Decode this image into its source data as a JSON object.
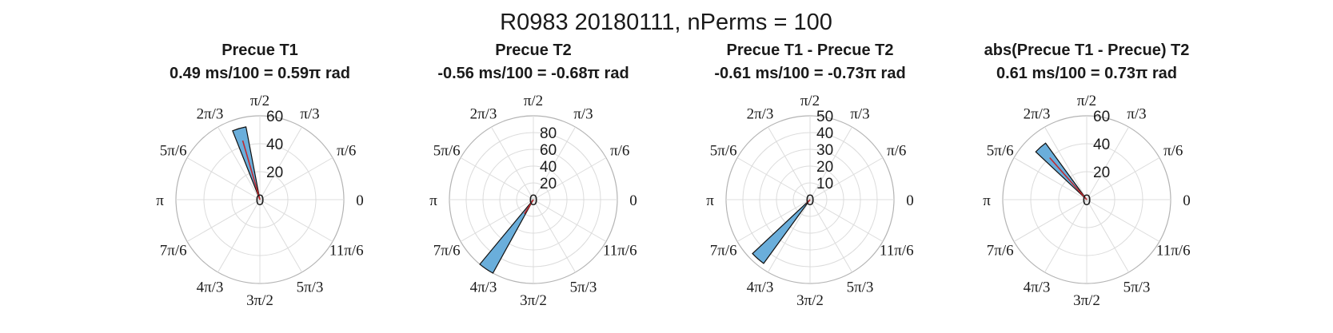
{
  "figure": {
    "suptitle": "R0983 20180111, nPerms = 100"
  },
  "theta_tick_labels": [
    "0",
    "π/6",
    "π/3",
    "π/2",
    "2π/3",
    "5π/6",
    "π",
    "7π/6",
    "4π/3",
    "3π/2",
    "5π/3",
    "11π/6"
  ],
  "colors": {
    "bar_fill": "#6aaedb",
    "bar_edge": "#111111",
    "mean_vector": "#c0282d",
    "grid": "#dcdcdc",
    "outer_circle": "#b4b4b4",
    "text": "#1a1a1a"
  },
  "chart_data": [
    {
      "type": "polar_histogram",
      "title": "Precue T1",
      "subtitle": "0.49 ms/100 = 0.59π rad",
      "rlim": [
        0,
        60
      ],
      "rticks": [
        20,
        40,
        60
      ],
      "r_tick_labels": [
        "20",
        "40",
        "60"
      ],
      "origin_label": "0",
      "bars": [
        {
          "theta_start_pi": 0.56,
          "theta_end_pi": 0.62,
          "count": 53
        }
      ],
      "mean_vector": {
        "theta_pi": 0.59,
        "length": 44
      }
    },
    {
      "type": "polar_histogram",
      "title": "Precue T2",
      "subtitle": "-0.56 ms/100 = -0.68π rad",
      "rlim": [
        0,
        100
      ],
      "rticks": [
        20,
        40,
        60,
        80
      ],
      "r_tick_labels": [
        "20",
        "40",
        "60",
        "80"
      ],
      "origin_label": "0",
      "bars": [
        {
          "theta_start_pi": 1.28,
          "theta_end_pi": 1.34,
          "count": 100
        }
      ],
      "mean_vector": {
        "theta_pi": 1.32,
        "length": 20
      }
    },
    {
      "type": "polar_histogram",
      "title": "Precue T1 - Precue T2",
      "subtitle": "-0.61 ms/100 = -0.73π rad",
      "rlim": [
        0,
        50
      ],
      "rticks": [
        10,
        20,
        30,
        40,
        50
      ],
      "r_tick_labels": [
        "10",
        "20",
        "30",
        "40",
        "50"
      ],
      "origin_label": "0",
      "bars": [
        {
          "theta_start_pi": 1.24,
          "theta_end_pi": 1.3,
          "count": 47
        }
      ],
      "mean_vector": {
        "theta_pi": 1.27,
        "length": 3
      }
    },
    {
      "type": "polar_histogram",
      "title": "abs(Precue T1 - Precue) T2",
      "subtitle": "0.61 ms/100 = 0.73π rad",
      "rlim": [
        0,
        60
      ],
      "rticks": [
        20,
        40,
        60
      ],
      "r_tick_labels": [
        "20",
        "40",
        "60"
      ],
      "origin_label": "0",
      "bars": [
        {
          "theta_start_pi": 0.7,
          "theta_end_pi": 0.76,
          "count": 50
        }
      ],
      "mean_vector": {
        "theta_pi": 0.73,
        "length": 40
      }
    }
  ]
}
